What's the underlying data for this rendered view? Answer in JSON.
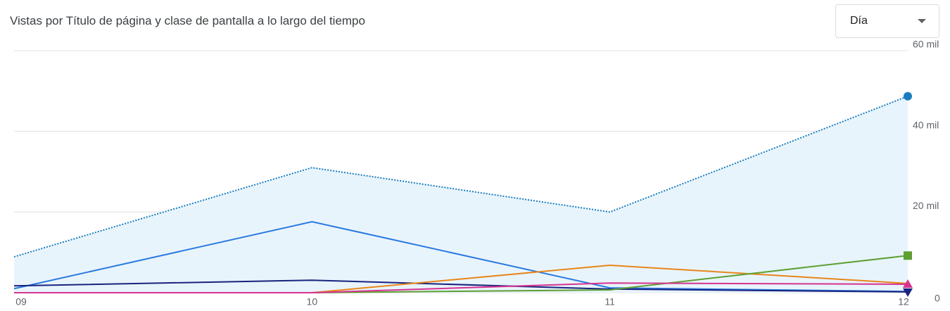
{
  "chart_data": {
    "type": "line",
    "title": "Vistas por Título de página y clase de pantalla a lo largo del tiempo",
    "categories": [
      "09",
      "10",
      "11",
      "12"
    ],
    "series": [
      {
        "color": "#1a7dc0",
        "values": [
          8900,
          31000,
          20000,
          48700
        ],
        "dotted": true,
        "area": true,
        "marker": "circle"
      },
      {
        "color": "#2a7ae0",
        "values": [
          1000,
          17600,
          1200,
          300
        ],
        "marker": "none"
      },
      {
        "color": "#1a237e",
        "values": [
          1700,
          3100,
          900,
          200
        ],
        "marker": "triangle-down"
      },
      {
        "color": "#e8861a",
        "values": [
          0,
          0,
          6800,
          2300
        ],
        "marker": "none"
      },
      {
        "color": "#5e9f32",
        "values": [
          0,
          0,
          700,
          9200
        ],
        "marker": "square"
      },
      {
        "color": "#d6338f",
        "values": [
          0,
          0,
          2400,
          2100
        ],
        "marker": "triangle"
      }
    ],
    "ylim": [
      0,
      60000
    ],
    "yticks": [
      0,
      {
        "value": 20000,
        "label": "20 mil"
      },
      {
        "value": 40000,
        "label": "40 mil"
      },
      {
        "value": 60000,
        "label": "60 mil"
      }
    ],
    "grid": true,
    "area_color": "#e8f4fc"
  },
  "controls": {
    "granularity": "Día"
  }
}
